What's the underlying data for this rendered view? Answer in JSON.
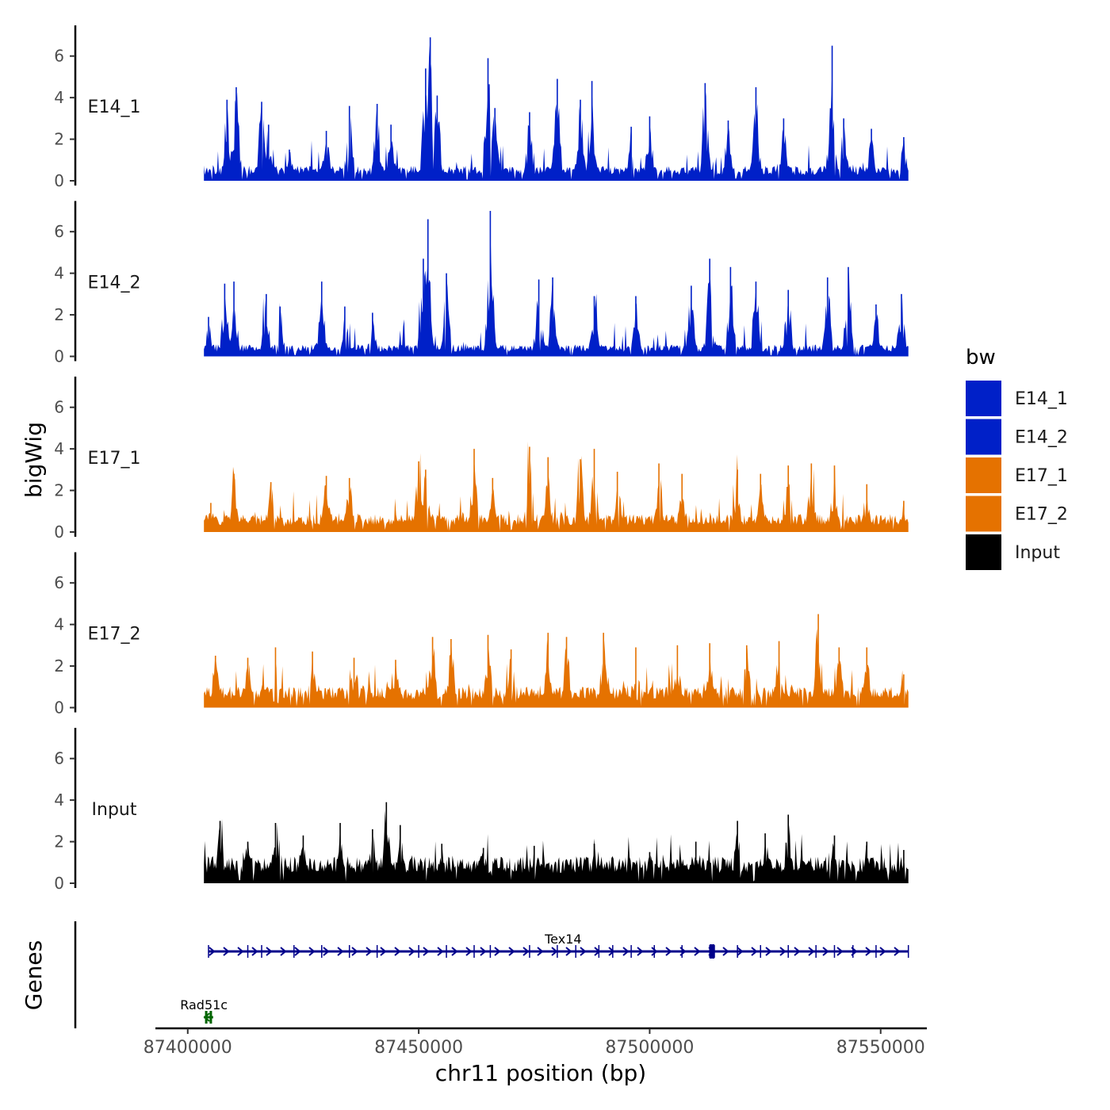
{
  "chart_data": {
    "type": "area",
    "title": "",
    "xlabel": "chr11 position (bp)",
    "ylabel": "bigWig",
    "genes_label": "Genes",
    "xlim": [
      87393000,
      87560000
    ],
    "x_ticks": [
      87400000,
      87450000,
      87500000,
      87550000
    ],
    "x_tick_labels": [
      "87400000",
      "87450000",
      "87500000",
      "87550000"
    ],
    "ylim": [
      0,
      7.4
    ],
    "y_ticks": [
      0,
      2,
      4,
      6
    ],
    "y_tick_labels": [
      "0",
      "2",
      "4",
      "6"
    ],
    "data_range": [
      87403500,
      87556000
    ],
    "legend": {
      "title": "bw",
      "position": "right",
      "entries": [
        {
          "name": "E14_1",
          "color": "#0020c8"
        },
        {
          "name": "E14_2",
          "color": "#0020c8"
        },
        {
          "name": "E17_1",
          "color": "#e57200"
        },
        {
          "name": "E17_2",
          "color": "#e57200"
        },
        {
          "name": "Input",
          "color": "#000000"
        }
      ]
    },
    "series": [
      {
        "name": "E14_1",
        "color": "#0020c8",
        "peaks": [
          {
            "x": 87408500,
            "y": 3.9
          },
          {
            "x": 87410500,
            "y": 4.5
          },
          {
            "x": 87416000,
            "y": 3.8
          },
          {
            "x": 87417500,
            "y": 2.7
          },
          {
            "x": 87422000,
            "y": 1.5
          },
          {
            "x": 87430000,
            "y": 2.4
          },
          {
            "x": 87435000,
            "y": 3.6
          },
          {
            "x": 87441000,
            "y": 3.7
          },
          {
            "x": 87444000,
            "y": 2.7
          },
          {
            "x": 87451500,
            "y": 5.4
          },
          {
            "x": 87452500,
            "y": 6.9
          },
          {
            "x": 87454000,
            "y": 4.1
          },
          {
            "x": 87465000,
            "y": 5.9
          },
          {
            "x": 87466500,
            "y": 3.5
          },
          {
            "x": 87474000,
            "y": 3.3
          },
          {
            "x": 87480000,
            "y": 4.9
          },
          {
            "x": 87485000,
            "y": 3.9
          },
          {
            "x": 87487500,
            "y": 4.8
          },
          {
            "x": 87496000,
            "y": 2.6
          },
          {
            "x": 87500000,
            "y": 3.1
          },
          {
            "x": 87512000,
            "y": 4.7
          },
          {
            "x": 87517000,
            "y": 2.9
          },
          {
            "x": 87523000,
            "y": 4.5
          },
          {
            "x": 87529000,
            "y": 3.0
          },
          {
            "x": 87539500,
            "y": 6.5
          },
          {
            "x": 87542000,
            "y": 3.0
          },
          {
            "x": 87548000,
            "y": 2.5
          },
          {
            "x": 87555000,
            "y": 2.1
          }
        ],
        "baseline": 0.5
      },
      {
        "name": "E14_2",
        "color": "#0020c8",
        "peaks": [
          {
            "x": 87404500,
            "y": 1.9
          },
          {
            "x": 87408000,
            "y": 3.5
          },
          {
            "x": 87410000,
            "y": 3.6
          },
          {
            "x": 87417000,
            "y": 3.0
          },
          {
            "x": 87420000,
            "y": 2.4
          },
          {
            "x": 87429000,
            "y": 3.6
          },
          {
            "x": 87434000,
            "y": 2.4
          },
          {
            "x": 87440000,
            "y": 2.1
          },
          {
            "x": 87451000,
            "y": 4.7
          },
          {
            "x": 87452000,
            "y": 6.6
          },
          {
            "x": 87456000,
            "y": 4.0
          },
          {
            "x": 87465500,
            "y": 7.0
          },
          {
            "x": 87476000,
            "y": 3.7
          },
          {
            "x": 87479000,
            "y": 3.8
          },
          {
            "x": 87488000,
            "y": 2.9
          },
          {
            "x": 87497000,
            "y": 2.9
          },
          {
            "x": 87509000,
            "y": 3.4
          },
          {
            "x": 87513000,
            "y": 4.7
          },
          {
            "x": 87517500,
            "y": 4.3
          },
          {
            "x": 87523000,
            "y": 3.6
          },
          {
            "x": 87530000,
            "y": 3.2
          },
          {
            "x": 87538500,
            "y": 3.8
          },
          {
            "x": 87543000,
            "y": 4.3
          },
          {
            "x": 87549000,
            "y": 2.5
          },
          {
            "x": 87554500,
            "y": 3.0
          }
        ],
        "baseline": 0.4
      },
      {
        "name": "E17_1",
        "color": "#e57200",
        "peaks": [
          {
            "x": 87405000,
            "y": 1.4
          },
          {
            "x": 87410000,
            "y": 2.8
          },
          {
            "x": 87418000,
            "y": 2.4
          },
          {
            "x": 87430000,
            "y": 2.7
          },
          {
            "x": 87435000,
            "y": 2.6
          },
          {
            "x": 87450000,
            "y": 3.4
          },
          {
            "x": 87451500,
            "y": 3.0
          },
          {
            "x": 87462000,
            "y": 4.0
          },
          {
            "x": 87466000,
            "y": 2.6
          },
          {
            "x": 87474000,
            "y": 4.1
          },
          {
            "x": 87478000,
            "y": 3.6
          },
          {
            "x": 87485000,
            "y": 3.5
          },
          {
            "x": 87488000,
            "y": 4.0
          },
          {
            "x": 87493000,
            "y": 2.9
          },
          {
            "x": 87502000,
            "y": 3.3
          },
          {
            "x": 87507000,
            "y": 2.8
          },
          {
            "x": 87519000,
            "y": 3.0
          },
          {
            "x": 87524000,
            "y": 2.8
          },
          {
            "x": 87530000,
            "y": 3.2
          },
          {
            "x": 87535000,
            "y": 3.3
          },
          {
            "x": 87540000,
            "y": 3.2
          },
          {
            "x": 87547000,
            "y": 2.3
          },
          {
            "x": 87555000,
            "y": 1.5
          }
        ],
        "baseline": 0.6
      },
      {
        "name": "E17_2",
        "color": "#e57200",
        "peaks": [
          {
            "x": 87406000,
            "y": 2.5
          },
          {
            "x": 87413000,
            "y": 2.4
          },
          {
            "x": 87419000,
            "y": 2.9
          },
          {
            "x": 87427000,
            "y": 2.7
          },
          {
            "x": 87436000,
            "y": 2.4
          },
          {
            "x": 87445000,
            "y": 2.3
          },
          {
            "x": 87453000,
            "y": 3.4
          },
          {
            "x": 87457000,
            "y": 3.3
          },
          {
            "x": 87465000,
            "y": 3.5
          },
          {
            "x": 87470000,
            "y": 2.8
          },
          {
            "x": 87478000,
            "y": 3.6
          },
          {
            "x": 87482000,
            "y": 3.4
          },
          {
            "x": 87490000,
            "y": 3.6
          },
          {
            "x": 87497000,
            "y": 2.9
          },
          {
            "x": 87506000,
            "y": 3.0
          },
          {
            "x": 87513000,
            "y": 3.1
          },
          {
            "x": 87521000,
            "y": 3.0
          },
          {
            "x": 87528000,
            "y": 3.2
          },
          {
            "x": 87536500,
            "y": 4.5
          },
          {
            "x": 87541000,
            "y": 2.9
          },
          {
            "x": 87547000,
            "y": 2.9
          },
          {
            "x": 87555000,
            "y": 1.6
          }
        ],
        "baseline": 0.7
      },
      {
        "name": "Input",
        "color": "#000000",
        "peaks": [
          {
            "x": 87407000,
            "y": 3.0
          },
          {
            "x": 87413000,
            "y": 2.0
          },
          {
            "x": 87419000,
            "y": 2.9
          },
          {
            "x": 87425000,
            "y": 2.3
          },
          {
            "x": 87433000,
            "y": 2.9
          },
          {
            "x": 87440000,
            "y": 2.6
          },
          {
            "x": 87443000,
            "y": 3.9
          },
          {
            "x": 87446000,
            "y": 2.8
          },
          {
            "x": 87455000,
            "y": 1.9
          },
          {
            "x": 87464000,
            "y": 1.7
          },
          {
            "x": 87475000,
            "y": 1.8
          },
          {
            "x": 87488000,
            "y": 1.9
          },
          {
            "x": 87500000,
            "y": 1.5
          },
          {
            "x": 87510000,
            "y": 2.0
          },
          {
            "x": 87519000,
            "y": 3.0
          },
          {
            "x": 87525000,
            "y": 2.4
          },
          {
            "x": 87530000,
            "y": 3.3
          },
          {
            "x": 87540000,
            "y": 2.3
          },
          {
            "x": 87547000,
            "y": 2.0
          },
          {
            "x": 87555000,
            "y": 1.6
          }
        ],
        "baseline": 0.9
      }
    ],
    "genes": [
      {
        "name": "Tex14",
        "strand": "+",
        "start": 87404500,
        "end": 87556000,
        "row": "upper",
        "color": "#00008b",
        "exons": [
          87404500,
          87413000,
          87416000,
          87423000,
          87429000,
          87435000,
          87441000,
          87450000,
          87456000,
          87462000,
          87465500,
          87474000,
          87480000,
          87484000,
          87489000,
          87492000,
          87496000,
          87501000,
          87507000,
          87513000,
          87514000,
          87519000,
          87524000,
          87530000,
          87536000,
          87540000,
          87544000,
          87549000,
          87556000
        ]
      },
      {
        "name": "Rad51c",
        "strand": "-",
        "start": 87403500,
        "end": 87405500,
        "row": "lower",
        "color": "#006400",
        "exons": [
          87404000,
          87405000
        ]
      }
    ]
  }
}
